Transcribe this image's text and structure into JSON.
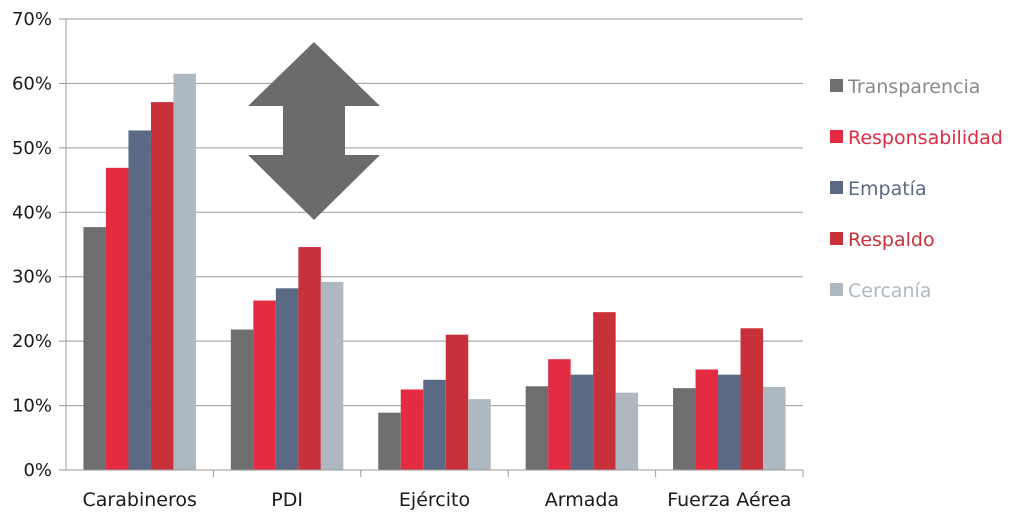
{
  "chart_data": {
    "type": "bar",
    "categories": [
      "Carabineros",
      "PDI",
      "Ejército",
      "Armada",
      "Fuerza Aérea"
    ],
    "series": [
      {
        "name": "Transparencia",
        "color": "#6e6e6e",
        "values": [
          37.7,
          21.8,
          8.9,
          13.0,
          12.7
        ]
      },
      {
        "name": "Responsabilidad",
        "color": "#e32b42",
        "values": [
          46.9,
          26.3,
          12.5,
          17.2,
          15.6
        ]
      },
      {
        "name": "Empatía",
        "color": "#5a6a84",
        "values": [
          52.7,
          28.2,
          14.0,
          14.8,
          14.8
        ]
      },
      {
        "name": "Respaldo",
        "color": "#c8313a",
        "values": [
          57.1,
          34.6,
          21.0,
          24.5,
          22.0
        ]
      },
      {
        "name": "Cercanía",
        "color": "#aeb8c1",
        "values": [
          61.5,
          29.2,
          11.0,
          12.0,
          12.9
        ]
      }
    ],
    "legend_text_colors": [
      "#8a8a8a",
      "#e32b42",
      "#5a6a84",
      "#c8313a",
      "#aeb8c1"
    ],
    "yticks": [
      "0%",
      "10%",
      "20%",
      "30%",
      "40%",
      "50%",
      "60%",
      "70%"
    ],
    "ylim": [
      0,
      70
    ],
    "grid": true,
    "legend_position": "right",
    "annotation": {
      "type": "double-arrow",
      "color": "#6b6b6b",
      "between": [
        "Carabineros",
        "PDI"
      ]
    }
  }
}
